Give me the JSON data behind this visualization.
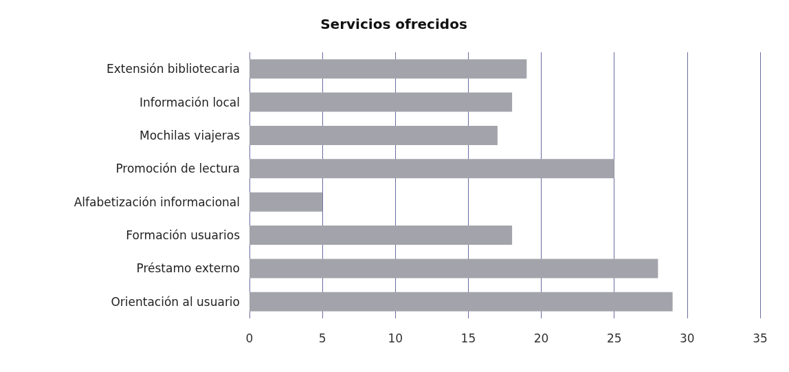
{
  "chart_data": {
    "type": "bar",
    "title": "Servicios ofrecidos",
    "orientation": "horizontal",
    "categories": [
      "Extensión bibliotecaria",
      "Información local",
      "Mochilas viajeras",
      "Promoción de lectura",
      "Alfabetización informacional",
      "Formación usuarios",
      "Préstamo externo",
      "Orientación al usuario"
    ],
    "values": [
      19,
      18,
      17,
      25,
      5,
      18,
      28,
      29
    ],
    "color": "#a3a3ab",
    "xlim": [
      0,
      35
    ],
    "xticks": [
      0,
      5,
      10,
      15,
      20,
      25,
      30,
      35
    ],
    "grid": "x"
  }
}
